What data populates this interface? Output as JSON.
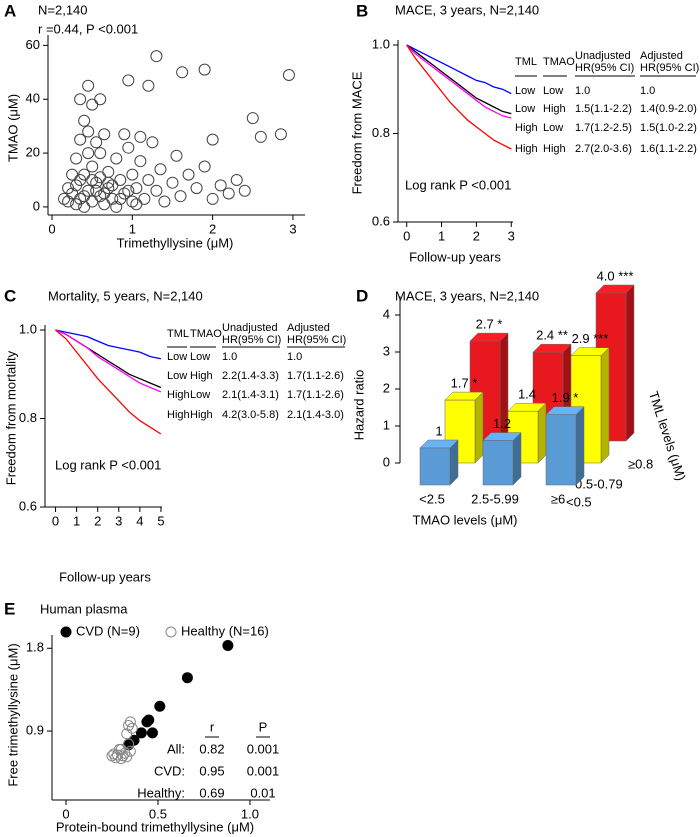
{
  "chart_data": [
    {
      "panel": "A",
      "type": "scatter",
      "title": "N=2,140",
      "subtitle": "r =0.44, P <0.001",
      "x_label": "Trimethyllysine (μM)",
      "y_label": "TMAO (μM)",
      "xlim": [
        -0.05,
        3.15
      ],
      "ylim": [
        -3,
        62
      ],
      "xticks": [
        0,
        1,
        2,
        3
      ],
      "yticks": [
        0,
        20,
        40,
        60
      ],
      "series": [
        {
          "marker": "open",
          "color": "#444444",
          "x": [
            0.2,
            0.25,
            0.3,
            0.3,
            0.35,
            0.4,
            0.4,
            0.45,
            0.5,
            0.5,
            0.55,
            0.6,
            0.6,
            0.65,
            0.7,
            0.7,
            0.75,
            0.8,
            0.8,
            0.85,
            0.9,
            0.95,
            1.0,
            1.0,
            1.05,
            1.1,
            1.15,
            1.2,
            1.25,
            1.3,
            1.35,
            1.4,
            1.5,
            1.55,
            1.6,
            1.7,
            1.8,
            1.9,
            2.0,
            2.1,
            2.2,
            2.3,
            2.4,
            0.3,
            0.35,
            0.45,
            0.55,
            0.65,
            0.9,
            1.1,
            0.25,
            0.5,
            0.6,
            0.7,
            0.4,
            0.55,
            0.65,
            0.75,
            0.85,
            0.95,
            1.05,
            0.35,
            0.45,
            0.15,
            0.2,
            1.3,
            1.9,
            2.95,
            1.62,
            0.45,
            0.95,
            1.2,
            0.6,
            0.35,
            0.5,
            2.0,
            2.6,
            2.5,
            2.85,
            0.4
          ],
          "values": [
            2,
            5,
            1,
            8,
            3,
            12,
            0,
            6,
            2,
            15,
            9,
            4,
            20,
            1,
            7,
            13,
            3,
            18,
            0,
            10,
            5,
            22,
            2,
            12,
            7,
            17,
            3,
            10,
            24,
            6,
            14,
            2,
            9,
            19,
            4,
            12,
            7,
            15,
            3,
            8,
            5,
            10,
            6,
            18,
            25,
            28,
            24,
            27,
            27,
            26,
            12,
            10,
            11,
            9,
            4,
            6,
            5,
            8,
            3,
            6,
            1,
            10,
            20,
            3,
            7,
            56,
            51,
            49,
            50,
            45,
            47,
            45,
            40,
            40,
            38,
            25,
            26,
            33,
            27,
            32
          ]
        }
      ]
    },
    {
      "panel": "B",
      "type": "line",
      "title": "MACE, 3 years,  N=2,140",
      "annotation": "Log rank P <0.001",
      "x_label": "Follow-up years",
      "y_label": "Freedom from MACE",
      "xlim": [
        -0.25,
        3.05
      ],
      "ylim": [
        0.6,
        1.0
      ],
      "xticks": [
        0,
        1,
        2,
        3
      ],
      "yticks": [
        0.6,
        0.8,
        {
          "value": 1,
          "label": "1.0"
        }
      ],
      "x": [
        0,
        0.25,
        0.5,
        0.75,
        1,
        1.25,
        1.5,
        1.75,
        2,
        2.25,
        2.5,
        2.75,
        3
      ],
      "series": [
        {
          "color": "#0000ff",
          "values": [
            1,
            0.99,
            0.98,
            0.97,
            0.96,
            0.95,
            0.94,
            0.93,
            0.92,
            0.915,
            0.905,
            0.9,
            0.89
          ]
        },
        {
          "color": "#000000",
          "values": [
            1,
            0.985,
            0.97,
            0.955,
            0.94,
            0.925,
            0.91,
            0.895,
            0.88,
            0.87,
            0.86,
            0.85,
            0.845
          ]
        },
        {
          "color": "#ff00ff",
          "values": [
            1,
            0.98,
            0.965,
            0.95,
            0.935,
            0.92,
            0.905,
            0.89,
            0.875,
            0.86,
            0.85,
            0.84,
            0.835
          ]
        },
        {
          "color": "#ff0000",
          "values": [
            1,
            0.97,
            0.945,
            0.92,
            0.895,
            0.87,
            0.85,
            0.83,
            0.815,
            0.8,
            0.785,
            0.775,
            0.765
          ]
        }
      ],
      "table": {
        "columns": [
          [
            "TML"
          ],
          [
            "TMAO"
          ],
          [
            "Unadjusted",
            "HR(95% CI)"
          ],
          [
            "Adjusted",
            "HR(95% CI)"
          ]
        ],
        "rows": [
          [
            "Low",
            "Low",
            "1.0",
            "1.0"
          ],
          [
            "Low",
            "High",
            "1.5(1.1-2.2)",
            "1.4(0.9-2.0)"
          ],
          [
            "High",
            "Low",
            "1.7(1.2-2.5)",
            "1.5(1.0-2.2)"
          ],
          [
            "High",
            "High",
            "2.7(2.0-3.6)",
            "1.6(1.1-2.2)"
          ]
        ]
      }
    },
    {
      "panel": "C",
      "type": "line",
      "title": "Mortality, 5 years,  N=2,140",
      "annotation": "Log rank P <0.001",
      "x_label": "Follow-up years",
      "y_label": "Freedom from mortality",
      "xlim": [
        -0.5,
        5.05
      ],
      "ylim": [
        0.6,
        1.0
      ],
      "xticks": [
        0,
        1,
        2,
        3,
        4,
        5
      ],
      "yticks": [
        0.6,
        0.8,
        {
          "value": 1,
          "label": "1.0"
        }
      ],
      "x": [
        0,
        0.5,
        1,
        1.5,
        2,
        2.5,
        3,
        3.5,
        4,
        4.5,
        5
      ],
      "series": [
        {
          "color": "#0000ff",
          "values": [
            1,
            0.995,
            0.99,
            0.985,
            0.975,
            0.965,
            0.96,
            0.955,
            0.95,
            0.94,
            0.935
          ]
        },
        {
          "color": "#000000",
          "values": [
            1,
            0.99,
            0.975,
            0.96,
            0.945,
            0.93,
            0.915,
            0.9,
            0.89,
            0.88,
            0.87
          ]
        },
        {
          "color": "#ff00ff",
          "values": [
            1,
            0.99,
            0.975,
            0.96,
            0.94,
            0.925,
            0.91,
            0.895,
            0.88,
            0.87,
            0.86
          ]
        },
        {
          "color": "#ff0000",
          "values": [
            1,
            0.98,
            0.95,
            0.92,
            0.89,
            0.865,
            0.84,
            0.815,
            0.795,
            0.78,
            0.765
          ]
        }
      ],
      "table": {
        "columns": [
          [
            "TML"
          ],
          [
            "TMAO"
          ],
          [
            "Unadjusted",
            "HR(95% CI)"
          ],
          [
            "Adjusted",
            "HR(95% CI)"
          ]
        ],
        "rows": [
          [
            "Low",
            "Low",
            "1.0",
            "1.0"
          ],
          [
            "Low",
            "High",
            "2.2(1.4-3.3)",
            "1.7(1.1-2.6)"
          ],
          [
            "High",
            "Low",
            "2.1(1.4-3.1)",
            "1.7(1.1-2.6)"
          ],
          [
            "High",
            "High",
            "4.2(3.0-5.8)",
            "2.1(1.4-3.0)"
          ]
        ]
      }
    },
    {
      "panel": "D",
      "type": "bar",
      "title": "MACE, 3 years,  N=2,140",
      "x_label": "TMAO levels (μM)",
      "y_label": "Hazard ratio",
      "depth_label": "TML levels (μM)",
      "categories": [
        "<2.5",
        "2.5-5.99",
        "≥6"
      ],
      "ylim": [
        0,
        4.5
      ],
      "yticks": [
        0,
        1,
        2,
        3,
        4
      ],
      "series": [
        {
          "name": "<0.5",
          "color": "#5b9bd5",
          "values": [
            1,
            1.2,
            1.9
          ],
          "value_labels": [
            "1",
            "1.2",
            "1.9 *"
          ]
        },
        {
          "name": "0.5-0.79",
          "color": "#ffff00",
          "values": [
            1.7,
            1.4,
            2.9
          ],
          "value_labels": [
            "1.7 *",
            "1.4",
            "2.9 ***"
          ]
        },
        {
          "name": "≥0.8",
          "color": "#e8191e",
          "values": [
            2.7,
            2.4,
            4.0
          ],
          "value_labels": [
            "2.7 *",
            "2.4 **",
            "4.0 ***"
          ]
        }
      ]
    },
    {
      "panel": "E",
      "type": "scatter",
      "title": "Human plasma",
      "x_label": "Protein-bound trimethyllysine (μM)",
      "y_label": "Free trimethyllysine (μM)",
      "xlim": [
        -0.076,
        1.109
      ],
      "ylim": [
        0.15,
        1.89
      ],
      "xticks": [
        0,
        0.5,
        {
          "value": 1,
          "label": "1.0"
        }
      ],
      "yticks": [
        0.9,
        1.8
      ],
      "series": [
        {
          "name": "CVD (N=9)",
          "marker": "filled",
          "color": "#000000",
          "x": [
            0.88,
            0.66,
            0.51,
            0.45,
            0.44,
            0.47,
            0.41,
            0.37,
            0.34
          ],
          "values": [
            1.83,
            1.48,
            1.17,
            1.02,
            1.0,
            0.88,
            0.88,
            0.8,
            0.75
          ]
        },
        {
          "name": "Healthy (N=16)",
          "marker": "open",
          "color": "#888888",
          "x": [
            0.25,
            0.27,
            0.28,
            0.3,
            0.31,
            0.32,
            0.33,
            0.29,
            0.35,
            0.34,
            0.33,
            0.36,
            0.35,
            0.34,
            0.3,
            0.26
          ],
          "values": [
            0.63,
            0.61,
            0.64,
            0.6,
            0.63,
            0.66,
            0.62,
            0.7,
            0.68,
            0.76,
            0.87,
            0.93,
            1.0,
            0.96,
            0.7,
            0.65
          ]
        }
      ],
      "table": {
        "columns": [
          [
            "r"
          ],
          [
            "P"
          ]
        ],
        "rows": [
          [
            "All:",
            "0.82",
            "0.001"
          ],
          [
            "CVD:",
            "0.95",
            "0.001"
          ],
          [
            "Healthy:",
            "0.69",
            "0.01"
          ]
        ]
      }
    }
  ]
}
